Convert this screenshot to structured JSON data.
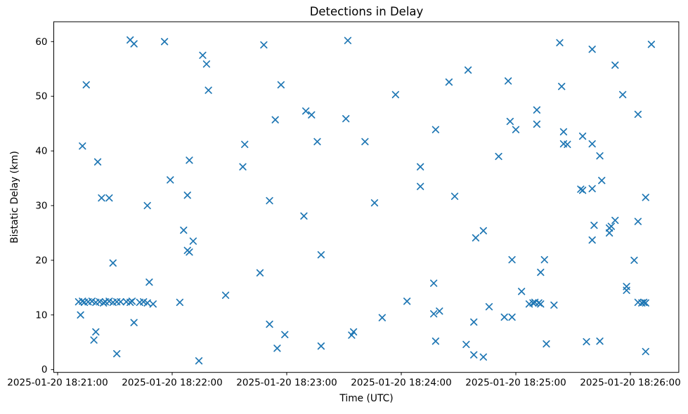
{
  "chart_data": {
    "type": "scatter",
    "title": "Detections in Delay",
    "xlabel": "Time (UTC)",
    "ylabel": "Bistatic Delay (km)",
    "date": "2025-01-20",
    "grid": false,
    "legend_position": "none",
    "marker": {
      "shape": "x",
      "color": "#1f77b4"
    },
    "x_tick_labels": [
      "2025-01-20 18:21:00",
      "2025-01-20 18:22:00",
      "2025-01-20 18:23:00",
      "2025-01-20 18:24:00",
      "2025-01-20 18:25:00",
      "2025-01-20 18:26:00"
    ],
    "x_tick_times": [
      "18:21:00",
      "18:22:00",
      "18:23:00",
      "18:24:00",
      "18:25:00",
      "18:26:00"
    ],
    "y_ticks": [
      0,
      10,
      20,
      30,
      40,
      50,
      60
    ],
    "xlim_seconds_after_first_tick": [
      -2.0,
      325.4
    ],
    "ylim": [
      -0.5,
      63.6
    ],
    "points": [
      [
        "18:21:11",
        12.4
      ],
      [
        "18:21:12",
        10.0
      ],
      [
        "18:21:13",
        12.5
      ],
      [
        "18:21:13",
        40.9
      ],
      [
        "18:21:14",
        12.3
      ],
      [
        "18:21:15",
        52.1
      ],
      [
        "18:21:16",
        12.4
      ],
      [
        "18:21:18",
        12.5
      ],
      [
        "18:21:19",
        5.4
      ],
      [
        "18:21:20",
        12.3
      ],
      [
        "18:21:20",
        6.9
      ],
      [
        "18:21:21",
        38.0
      ],
      [
        "18:21:22",
        12.4
      ],
      [
        "18:21:23",
        31.4
      ],
      [
        "18:21:24",
        12.2
      ],
      [
        "18:21:25",
        12.4
      ],
      [
        "18:21:27",
        12.5
      ],
      [
        "18:21:27",
        31.4
      ],
      [
        "18:21:29",
        12.3
      ],
      [
        "18:21:29",
        19.5
      ],
      [
        "18:21:31",
        12.4
      ],
      [
        "18:21:31",
        2.9
      ],
      [
        "18:21:33",
        12.4
      ],
      [
        "18:21:36",
        12.4
      ],
      [
        "18:21:38",
        12.3
      ],
      [
        "18:21:38",
        60.3
      ],
      [
        "18:21:39",
        12.5
      ],
      [
        "18:21:40",
        59.6
      ],
      [
        "18:21:40",
        8.6
      ],
      [
        "18:21:43",
        12.3
      ],
      [
        "18:21:45",
        12.4
      ],
      [
        "18:21:47",
        12.2
      ],
      [
        "18:21:47",
        30.0
      ],
      [
        "18:21:48",
        16.0
      ],
      [
        "18:21:50",
        12.0
      ],
      [
        "18:21:56",
        60.0
      ],
      [
        "18:21:59",
        34.7
      ],
      [
        "18:22:04",
        12.3
      ],
      [
        "18:22:06",
        25.5
      ],
      [
        "18:22:08",
        21.8
      ],
      [
        "18:22:08",
        31.9
      ],
      [
        "18:22:09",
        21.5
      ],
      [
        "18:22:09",
        38.3
      ],
      [
        "18:22:11",
        23.5
      ],
      [
        "18:22:14",
        1.6
      ],
      [
        "18:22:16",
        57.5
      ],
      [
        "18:22:18",
        55.9
      ],
      [
        "18:22:19",
        51.1
      ],
      [
        "18:22:28",
        13.6
      ],
      [
        "18:22:37",
        37.1
      ],
      [
        "18:22:38",
        41.2
      ],
      [
        "18:22:46",
        17.7
      ],
      [
        "18:22:48",
        59.4
      ],
      [
        "18:22:51",
        30.9
      ],
      [
        "18:22:51",
        8.3
      ],
      [
        "18:22:54",
        45.7
      ],
      [
        "18:22:55",
        3.9
      ],
      [
        "18:22:57",
        52.1
      ],
      [
        "18:22:59",
        6.4
      ],
      [
        "18:23:09",
        28.1
      ],
      [
        "18:23:10",
        47.3
      ],
      [
        "18:23:13",
        46.6
      ],
      [
        "18:23:16",
        41.7
      ],
      [
        "18:23:18",
        21.0
      ],
      [
        "18:23:18",
        4.3
      ],
      [
        "18:23:31",
        45.9
      ],
      [
        "18:23:32",
        60.2
      ],
      [
        "18:23:34",
        6.3
      ],
      [
        "18:23:35",
        6.9
      ],
      [
        "18:23:41",
        41.7
      ],
      [
        "18:23:46",
        30.5
      ],
      [
        "18:23:50",
        9.5
      ],
      [
        "18:23:57",
        50.3
      ],
      [
        "18:24:03",
        12.5
      ],
      [
        "18:24:10",
        37.1
      ],
      [
        "18:24:10",
        33.5
      ],
      [
        "18:24:17",
        15.8
      ],
      [
        "18:24:17",
        10.2
      ],
      [
        "18:24:18",
        43.9
      ],
      [
        "18:24:18",
        5.2
      ],
      [
        "18:24:20",
        10.7
      ],
      [
        "18:24:25",
        52.6
      ],
      [
        "18:24:28",
        31.7
      ],
      [
        "18:24:34",
        4.6
      ],
      [
        "18:24:35",
        54.8
      ],
      [
        "18:24:38",
        8.7
      ],
      [
        "18:24:38",
        2.7
      ],
      [
        "18:24:39",
        24.1
      ],
      [
        "18:24:43",
        25.4
      ],
      [
        "18:24:43",
        2.3
      ],
      [
        "18:24:46",
        11.5
      ],
      [
        "18:24:51",
        39.0
      ],
      [
        "18:24:54",
        9.6
      ],
      [
        "18:24:56",
        52.8
      ],
      [
        "18:24:57",
        45.4
      ],
      [
        "18:24:58",
        20.1
      ],
      [
        "18:24:58",
        9.6
      ],
      [
        "18:25:00",
        43.9
      ],
      [
        "18:25:03",
        14.3
      ],
      [
        "18:25:07",
        12.0
      ],
      [
        "18:25:09",
        12.2
      ],
      [
        "18:25:10",
        12.3
      ],
      [
        "18:25:11",
        47.5
      ],
      [
        "18:25:11",
        44.9
      ],
      [
        "18:25:12",
        12.2
      ],
      [
        "18:25:13",
        12.0
      ],
      [
        "18:25:13",
        17.8
      ],
      [
        "18:25:15",
        20.1
      ],
      [
        "18:25:16",
        4.7
      ],
      [
        "18:25:20",
        11.8
      ],
      [
        "18:25:23",
        59.8
      ],
      [
        "18:25:24",
        51.8
      ],
      [
        "18:25:25",
        43.5
      ],
      [
        "18:25:25",
        41.3
      ],
      [
        "18:25:27",
        41.2
      ],
      [
        "18:25:34",
        33.0
      ],
      [
        "18:25:35",
        32.8
      ],
      [
        "18:25:35",
        42.7
      ],
      [
        "18:25:37",
        5.1
      ],
      [
        "18:25:40",
        58.6
      ],
      [
        "18:25:40",
        41.3
      ],
      [
        "18:25:40",
        33.1
      ],
      [
        "18:25:40",
        23.7
      ],
      [
        "18:25:41",
        26.4
      ],
      [
        "18:25:44",
        39.1
      ],
      [
        "18:25:44",
        5.2
      ],
      [
        "18:25:45",
        34.6
      ],
      [
        "18:25:49",
        25.9
      ],
      [
        "18:25:49",
        25.0
      ],
      [
        "18:25:50",
        26.2
      ],
      [
        "18:25:52",
        27.3
      ],
      [
        "18:25:52",
        55.7
      ],
      [
        "18:25:56",
        50.3
      ],
      [
        "18:25:58",
        15.2
      ],
      [
        "18:25:58",
        14.5
      ],
      [
        "18:26:02",
        20.0
      ],
      [
        "18:26:04",
        46.7
      ],
      [
        "18:26:04",
        27.1
      ],
      [
        "18:26:04",
        12.3
      ],
      [
        "18:26:06",
        12.2
      ],
      [
        "18:26:07",
        12.3
      ],
      [
        "18:26:08",
        12.2
      ],
      [
        "18:26:08",
        31.5
      ],
      [
        "18:26:08",
        3.3
      ],
      [
        "18:26:11",
        59.5
      ]
    ]
  }
}
